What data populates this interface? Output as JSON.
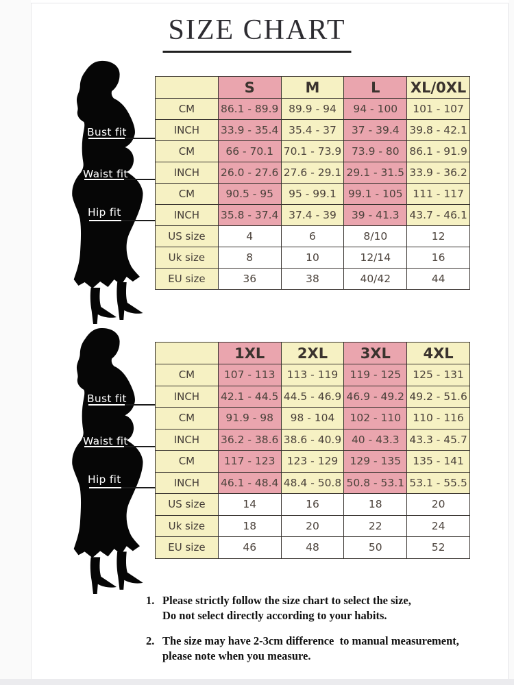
{
  "title": {
    "text": "SIZE CHART"
  },
  "colors": {
    "pink": "#eaa5ae",
    "yellow": "#f6f1c3",
    "border": "#35302c",
    "cell_text": "#4b423b",
    "label_text": "#ffffff"
  },
  "figure": {
    "labels": [
      "Bust fit",
      "Waist fit",
      "Hip fit"
    ]
  },
  "tables": [
    {
      "columns": [
        "",
        "S",
        "M",
        "L",
        "XL/0XL"
      ],
      "rows": [
        {
          "label": "CM",
          "shade": "alt",
          "values": [
            "86.1 - 89.9",
            "89.9 - 94",
            "94 - 100",
            "101 - 107"
          ]
        },
        {
          "label": "INCH",
          "shade": "alt",
          "values": [
            "33.9 - 35.4",
            "35.4 - 37",
            "37 - 39.4",
            "39.8 - 42.1"
          ]
        },
        {
          "label": "CM",
          "shade": "alt",
          "values": [
            "66 - 70.1",
            "70.1 - 73.9",
            "73.9 - 80",
            "86.1 - 91.9"
          ]
        },
        {
          "label": "INCH",
          "shade": "alt",
          "values": [
            "26.0 - 27.6",
            "27.6 - 29.1",
            "29.1 - 31.5",
            "33.9 - 36.2"
          ]
        },
        {
          "label": "CM",
          "shade": "alt",
          "values": [
            "90.5 - 95",
            "95 - 99.1",
            "99.1 - 105",
            "111 - 117"
          ]
        },
        {
          "label": "INCH",
          "shade": "alt",
          "values": [
            "35.8 - 37.4",
            "37.4 - 39",
            "39 - 41.3",
            "43.7 - 46.1"
          ]
        },
        {
          "label": "US size",
          "shade": "white",
          "values": [
            "4",
            "6",
            "8/10",
            "12"
          ]
        },
        {
          "label": "Uk size",
          "shade": "white",
          "values": [
            "8",
            "10",
            "12/14",
            "16"
          ]
        },
        {
          "label": "EU size",
          "shade": "white",
          "values": [
            "36",
            "38",
            "40/42",
            "44"
          ]
        }
      ]
    },
    {
      "columns": [
        "",
        "1XL",
        "2XL",
        "3XL",
        "4XL"
      ],
      "rows": [
        {
          "label": "CM",
          "shade": "alt",
          "values": [
            "107 - 113",
            "113 - 119",
            "119 - 125",
            "125 - 131"
          ]
        },
        {
          "label": "INCH",
          "shade": "alt",
          "values": [
            "42.1 - 44.5",
            "44.5 - 46.9",
            "46.9 - 49.2",
            "49.2 - 51.6"
          ]
        },
        {
          "label": "CM",
          "shade": "alt",
          "values": [
            "91.9 - 98",
            "98 - 104",
            "102 - 110",
            "110 - 116"
          ]
        },
        {
          "label": "INCH",
          "shade": "alt",
          "values": [
            "36.2 - 38.6",
            "38.6 - 40.9",
            "40 - 43.3",
            "43.3 - 45.7"
          ]
        },
        {
          "label": "CM",
          "shade": "alt",
          "values": [
            "117 - 123",
            "123 - 129",
            "129 - 135",
            "135 - 141"
          ]
        },
        {
          "label": "INCH",
          "shade": "alt",
          "values": [
            "46.1 - 48.4",
            "48.4 - 50.8",
            "50.8 - 53.1",
            "53.1 - 55.5"
          ]
        },
        {
          "label": "US size",
          "shade": "white",
          "values": [
            "14",
            "16",
            "18",
            "20"
          ]
        },
        {
          "label": "Uk size",
          "shade": "white",
          "values": [
            "18",
            "20",
            "22",
            "24"
          ]
        },
        {
          "label": "EU size",
          "shade": "white",
          "values": [
            "46",
            "48",
            "50",
            "52"
          ]
        }
      ]
    }
  ],
  "notes": [
    {
      "num": "1.",
      "lines": [
        "Please strictly follow the size chart to select the size,",
        "Do not select directly according to your habits."
      ]
    },
    {
      "num": "2.",
      "lines": [
        "The size may have 2-3cm difference  to manual measurement,",
        "please note when you measure."
      ]
    }
  ]
}
